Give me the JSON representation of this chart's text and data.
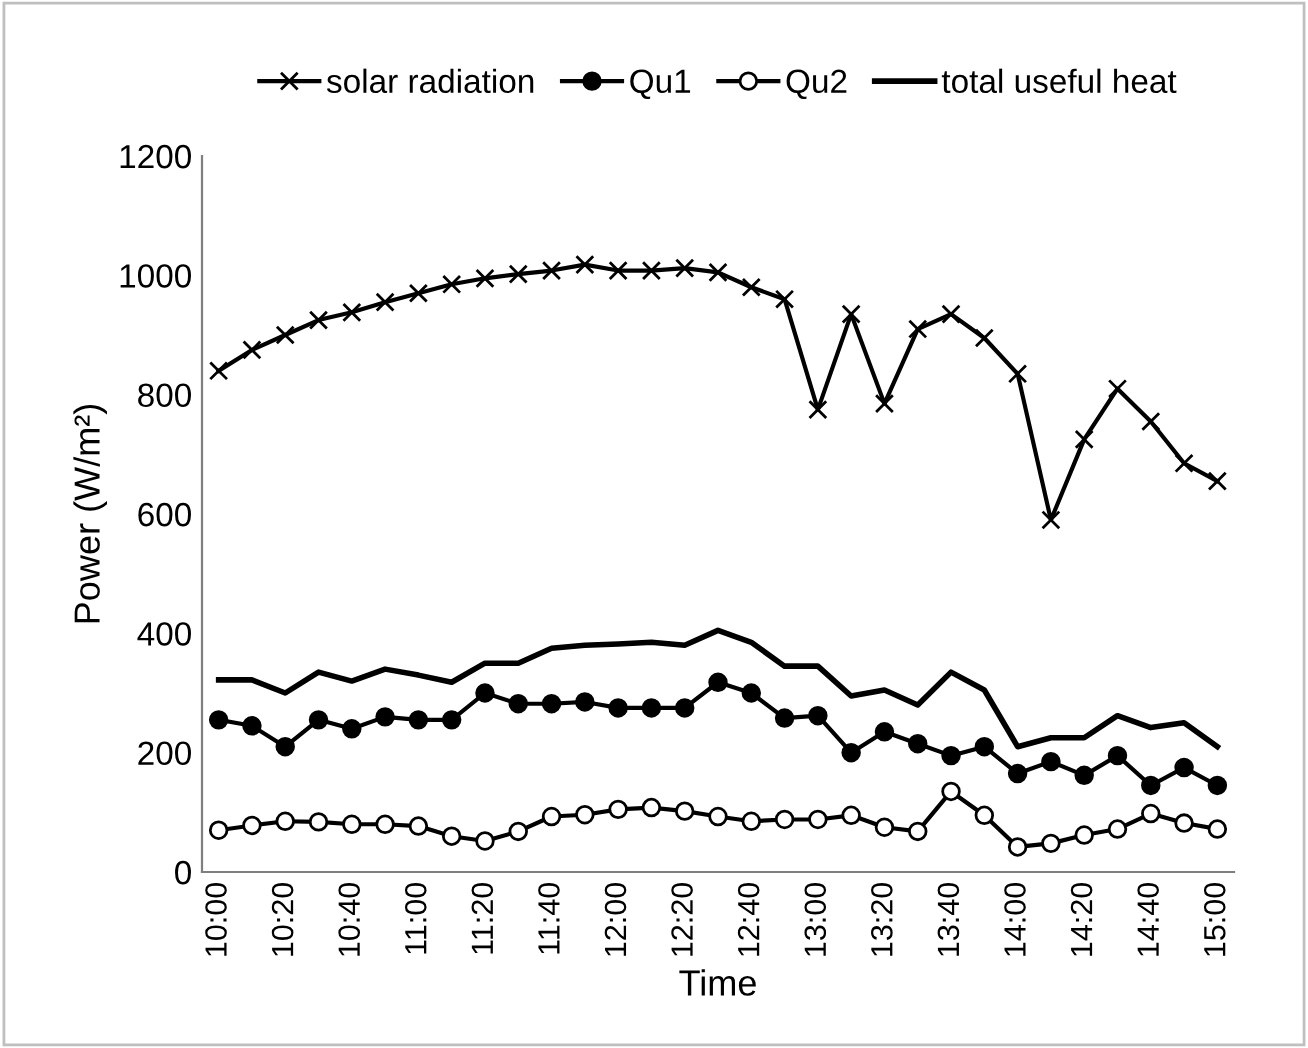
{
  "chart_data": {
    "type": "line",
    "xlabel": "Time",
    "ylabel": "Power (W/m²)",
    "categories": [
      "10:00",
      null,
      "10:20",
      null,
      "10:40",
      null,
      "11:00",
      null,
      "11:20",
      null,
      "11:40",
      null,
      "12:00",
      null,
      "12:20",
      null,
      "12:40",
      null,
      "13:00",
      null,
      "13:20",
      null,
      "13:40",
      null,
      "14:00",
      null,
      "14:20",
      null,
      "14:40",
      null,
      "15:00"
    ],
    "series": [
      {
        "name": "solar radiation",
        "color": "#000000",
        "marker": "cross",
        "values": [
          840,
          875,
          900,
          925,
          938,
          955,
          970,
          985,
          995,
          1002,
          1008,
          1018,
          1008,
          1008,
          1012,
          1005,
          980,
          960,
          775,
          935,
          785,
          910,
          935,
          895,
          835,
          590,
          725,
          810,
          755,
          685,
          655
        ]
      },
      {
        "name": "Qu1",
        "color": "#000000",
        "marker": "circle",
        "values": [
          255,
          245,
          210,
          255,
          240,
          260,
          255,
          255,
          300,
          282,
          282,
          285,
          275,
          275,
          275,
          318,
          300,
          258,
          262,
          200,
          235,
          215,
          195,
          210,
          165,
          185,
          162,
          195,
          145,
          175,
          145
        ]
      },
      {
        "name": "Qu2",
        "color": "#000000",
        "marker": "open circle",
        "values": [
          70,
          78,
          85,
          84,
          80,
          80,
          77,
          60,
          52,
          68,
          93,
          96,
          105,
          108,
          102,
          93,
          85,
          88,
          88,
          95,
          75,
          68,
          135,
          95,
          42,
          48,
          62,
          72,
          98,
          82,
          72
        ]
      },
      {
        "name": "total useful heat",
        "color": "#000000",
        "marker": "none",
        "values": [
          322,
          322,
          300,
          335,
          320,
          340,
          330,
          318,
          350,
          350,
          375,
          380,
          382,
          385,
          380,
          405,
          385,
          345,
          345,
          295,
          305,
          280,
          335,
          305,
          210,
          225,
          225,
          262,
          242,
          250,
          210
        ]
      }
    ],
    "ylim": [
      0,
      1200
    ],
    "yticks": [
      0,
      200,
      400,
      600,
      800,
      1000,
      1200
    ],
    "grid": false,
    "legend": "top"
  }
}
